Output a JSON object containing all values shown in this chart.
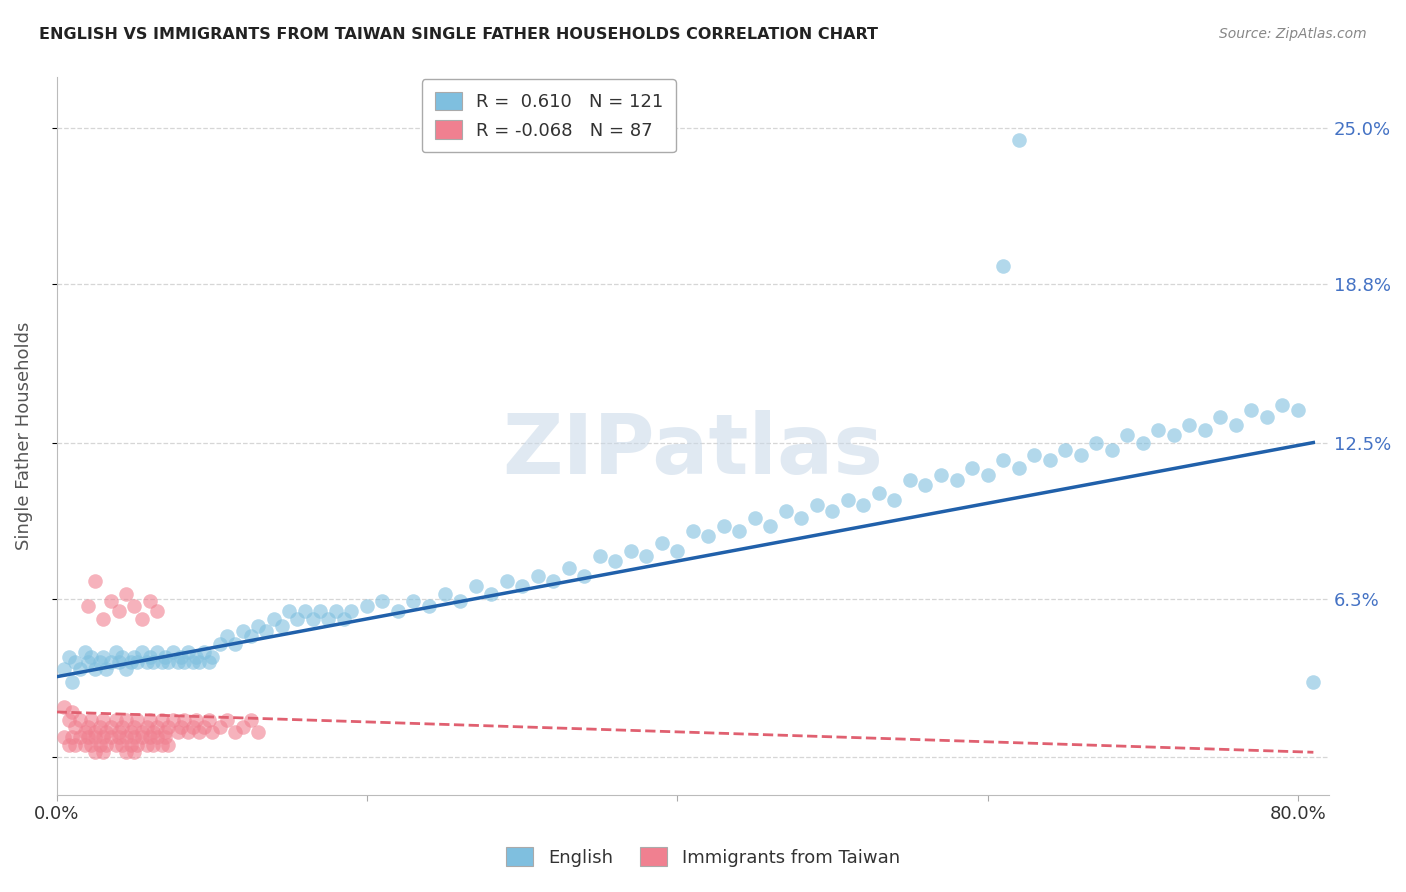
{
  "title": "ENGLISH VS IMMIGRANTS FROM TAIWAN SINGLE FATHER HOUSEHOLDS CORRELATION CHART",
  "source": "Source: ZipAtlas.com",
  "ylabel": "Single Father Households",
  "watermark": "ZIPatlas",
  "english_R": 0.61,
  "english_N": 121,
  "taiwan_R": -0.068,
  "taiwan_N": 87,
  "y_tick_labels": [
    "25.0%",
    "18.8%",
    "12.5%",
    "6.3%",
    ""
  ],
  "y_ticks": [
    0.25,
    0.188,
    0.125,
    0.063,
    0.0
  ],
  "xlim": [
    0.0,
    0.82
  ],
  "ylim": [
    -0.015,
    0.27
  ],
  "english_color": "#7fbfdf",
  "taiwan_color": "#f08090",
  "english_line_color": "#2060aa",
  "taiwan_line_color": "#e06070",
  "background_color": "#ffffff",
  "grid_color": "#cccccc",
  "english_scatter_x": [
    0.005,
    0.008,
    0.01,
    0.012,
    0.015,
    0.018,
    0.02,
    0.022,
    0.025,
    0.028,
    0.03,
    0.032,
    0.035,
    0.038,
    0.04,
    0.042,
    0.045,
    0.048,
    0.05,
    0.052,
    0.055,
    0.058,
    0.06,
    0.062,
    0.065,
    0.068,
    0.07,
    0.072,
    0.075,
    0.078,
    0.08,
    0.082,
    0.085,
    0.088,
    0.09,
    0.092,
    0.095,
    0.098,
    0.1,
    0.105,
    0.11,
    0.115,
    0.12,
    0.125,
    0.13,
    0.135,
    0.14,
    0.145,
    0.15,
    0.155,
    0.16,
    0.165,
    0.17,
    0.175,
    0.18,
    0.185,
    0.19,
    0.2,
    0.21,
    0.22,
    0.23,
    0.24,
    0.25,
    0.26,
    0.27,
    0.28,
    0.29,
    0.3,
    0.31,
    0.32,
    0.33,
    0.34,
    0.35,
    0.36,
    0.37,
    0.38,
    0.39,
    0.4,
    0.41,
    0.42,
    0.43,
    0.44,
    0.45,
    0.46,
    0.47,
    0.48,
    0.49,
    0.5,
    0.51,
    0.52,
    0.53,
    0.54,
    0.55,
    0.56,
    0.57,
    0.58,
    0.59,
    0.6,
    0.61,
    0.62,
    0.63,
    0.64,
    0.65,
    0.66,
    0.67,
    0.68,
    0.69,
    0.7,
    0.71,
    0.72,
    0.73,
    0.74,
    0.75,
    0.76,
    0.77,
    0.78,
    0.79,
    0.8,
    0.81,
    0.61,
    0.62
  ],
  "english_scatter_y": [
    0.035,
    0.04,
    0.03,
    0.038,
    0.035,
    0.042,
    0.038,
    0.04,
    0.035,
    0.038,
    0.04,
    0.035,
    0.038,
    0.042,
    0.038,
    0.04,
    0.035,
    0.038,
    0.04,
    0.038,
    0.042,
    0.038,
    0.04,
    0.038,
    0.042,
    0.038,
    0.04,
    0.038,
    0.042,
    0.038,
    0.04,
    0.038,
    0.042,
    0.038,
    0.04,
    0.038,
    0.042,
    0.038,
    0.04,
    0.045,
    0.048,
    0.045,
    0.05,
    0.048,
    0.052,
    0.05,
    0.055,
    0.052,
    0.058,
    0.055,
    0.058,
    0.055,
    0.058,
    0.055,
    0.058,
    0.055,
    0.058,
    0.06,
    0.062,
    0.058,
    0.062,
    0.06,
    0.065,
    0.062,
    0.068,
    0.065,
    0.07,
    0.068,
    0.072,
    0.07,
    0.075,
    0.072,
    0.08,
    0.078,
    0.082,
    0.08,
    0.085,
    0.082,
    0.09,
    0.088,
    0.092,
    0.09,
    0.095,
    0.092,
    0.098,
    0.095,
    0.1,
    0.098,
    0.102,
    0.1,
    0.105,
    0.102,
    0.11,
    0.108,
    0.112,
    0.11,
    0.115,
    0.112,
    0.118,
    0.115,
    0.12,
    0.118,
    0.122,
    0.12,
    0.125,
    0.122,
    0.128,
    0.125,
    0.13,
    0.128,
    0.132,
    0.13,
    0.135,
    0.132,
    0.138,
    0.135,
    0.14,
    0.138,
    0.03,
    0.195,
    0.245
  ],
  "taiwan_scatter_x": [
    0.005,
    0.008,
    0.01,
    0.012,
    0.015,
    0.018,
    0.02,
    0.022,
    0.025,
    0.028,
    0.03,
    0.032,
    0.035,
    0.038,
    0.04,
    0.042,
    0.045,
    0.048,
    0.05,
    0.052,
    0.055,
    0.058,
    0.06,
    0.062,
    0.065,
    0.068,
    0.07,
    0.072,
    0.075,
    0.078,
    0.08,
    0.082,
    0.085,
    0.088,
    0.09,
    0.092,
    0.095,
    0.098,
    0.1,
    0.105,
    0.11,
    0.115,
    0.12,
    0.125,
    0.13,
    0.005,
    0.008,
    0.01,
    0.012,
    0.015,
    0.018,
    0.02,
    0.022,
    0.025,
    0.028,
    0.03,
    0.032,
    0.035,
    0.038,
    0.04,
    0.042,
    0.045,
    0.048,
    0.05,
    0.052,
    0.055,
    0.058,
    0.06,
    0.062,
    0.065,
    0.068,
    0.07,
    0.072,
    0.02,
    0.025,
    0.03,
    0.035,
    0.04,
    0.045,
    0.05,
    0.055,
    0.06,
    0.065,
    0.025,
    0.03,
    0.045,
    0.05
  ],
  "taiwan_scatter_y": [
    0.02,
    0.015,
    0.018,
    0.012,
    0.015,
    0.01,
    0.012,
    0.015,
    0.01,
    0.012,
    0.015,
    0.01,
    0.012,
    0.015,
    0.01,
    0.012,
    0.015,
    0.01,
    0.012,
    0.015,
    0.01,
    0.012,
    0.015,
    0.01,
    0.012,
    0.015,
    0.01,
    0.012,
    0.015,
    0.01,
    0.012,
    0.015,
    0.01,
    0.012,
    0.015,
    0.01,
    0.012,
    0.015,
    0.01,
    0.012,
    0.015,
    0.01,
    0.012,
    0.015,
    0.01,
    0.008,
    0.005,
    0.008,
    0.005,
    0.008,
    0.005,
    0.008,
    0.005,
    0.008,
    0.005,
    0.008,
    0.005,
    0.008,
    0.005,
    0.008,
    0.005,
    0.008,
    0.005,
    0.008,
    0.005,
    0.008,
    0.005,
    0.008,
    0.005,
    0.008,
    0.005,
    0.008,
    0.005,
    0.06,
    0.07,
    0.055,
    0.062,
    0.058,
    0.065,
    0.06,
    0.055,
    0.062,
    0.058,
    0.002,
    0.002,
    0.002,
    0.002
  ],
  "english_line_x0": 0.0,
  "english_line_x1": 0.81,
  "english_line_y0": 0.032,
  "english_line_y1": 0.125,
  "taiwan_line_x0": 0.0,
  "taiwan_line_x1": 0.81,
  "taiwan_line_y0": 0.018,
  "taiwan_line_y1": 0.002,
  "legend_label_english": "R =  0.610   N = 121",
  "legend_label_taiwan": "R = -0.068   N = 87",
  "bottom_legend_english": "English",
  "bottom_legend_taiwan": "Immigrants from Taiwan"
}
